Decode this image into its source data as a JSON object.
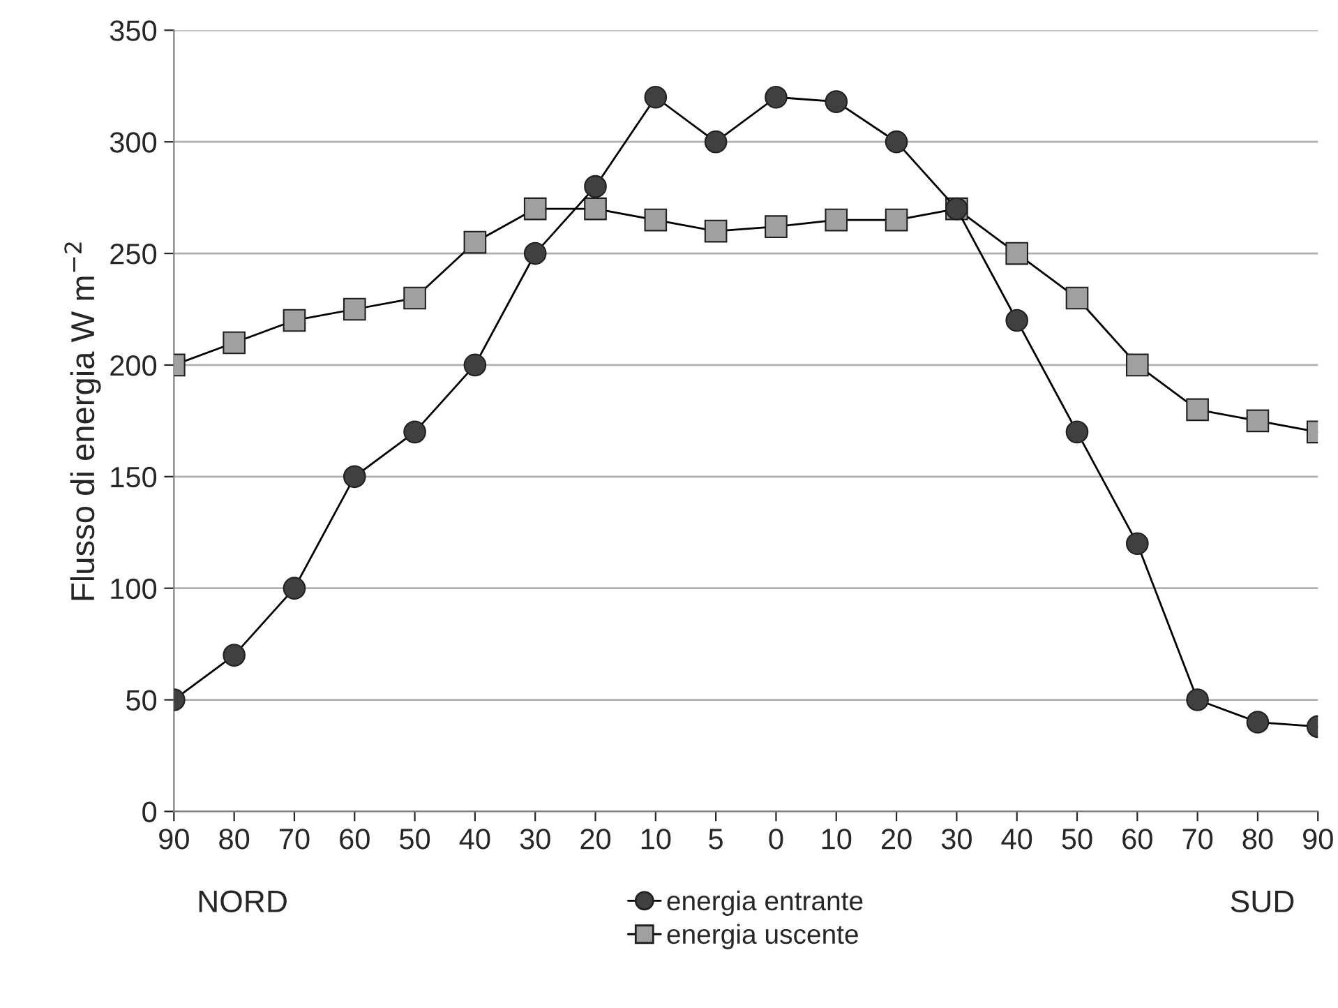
{
  "chart_data": {
    "type": "line",
    "ylabel": "Flusso di energia W m$^{−2}$",
    "categories": [
      "90",
      "80",
      "70",
      "60",
      "50",
      "40",
      "30",
      "20",
      "10",
      "5",
      "0",
      "10",
      "20",
      "30",
      "40",
      "50",
      "60",
      "70",
      "80",
      "90"
    ],
    "series": [
      {
        "name": "energia entrante",
        "color": "#404040",
        "marker": "circle",
        "values": [
          50,
          70,
          100,
          150,
          170,
          200,
          250,
          280,
          320,
          300,
          320,
          318,
          300,
          270,
          220,
          170,
          120,
          50,
          40,
          38
        ]
      },
      {
        "name": "energia uscente",
        "color": "#a0a0a0",
        "marker": "square",
        "values": [
          200,
          210,
          220,
          225,
          230,
          255,
          270,
          270,
          265,
          260,
          262,
          265,
          265,
          270,
          250,
          230,
          200,
          180,
          175,
          170
        ]
      }
    ],
    "ylim": [
      0,
      350
    ],
    "yticks": [
      0,
      50,
      100,
      150,
      200,
      250,
      300,
      350
    ],
    "grid": "y",
    "legend": "bottom",
    "annotations": [
      "NORD",
      "SUD"
    ]
  }
}
